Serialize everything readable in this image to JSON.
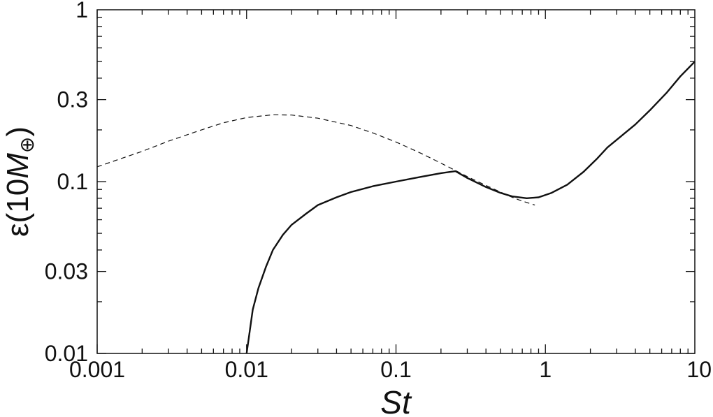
{
  "chart_data": {
    "type": "line",
    "xscale": "log",
    "yscale": "log",
    "xlim": [
      0.001,
      10
    ],
    "ylim": [
      0.01,
      1
    ],
    "xlabel": "St",
    "ylabel": {
      "prefix": "ε(10",
      "italic": "M",
      "subscript": "⊕",
      "suffix": ")"
    },
    "x_ticks": [
      {
        "value": 0.001,
        "label": "0.001"
      },
      {
        "value": 0.01,
        "label": "0.01"
      },
      {
        "value": 0.1,
        "label": "0.1"
      },
      {
        "value": 1,
        "label": "1"
      },
      {
        "value": 10,
        "label": "10"
      }
    ],
    "y_ticks": [
      {
        "value": 0.01,
        "label": "0.01"
      },
      {
        "value": 0.03,
        "label": "0.03"
      },
      {
        "value": 0.1,
        "label": "0.1"
      },
      {
        "value": 0.3,
        "label": "0.3"
      },
      {
        "value": 1,
        "label": "1"
      }
    ],
    "grid": false,
    "series": [
      {
        "style": "solid",
        "color": "#111111",
        "points": [
          [
            0.01,
            0.01
          ],
          [
            0.0105,
            0.0135
          ],
          [
            0.011,
            0.018
          ],
          [
            0.012,
            0.024
          ],
          [
            0.0135,
            0.032
          ],
          [
            0.015,
            0.04
          ],
          [
            0.0175,
            0.049
          ],
          [
            0.02,
            0.056
          ],
          [
            0.025,
            0.065
          ],
          [
            0.03,
            0.073
          ],
          [
            0.04,
            0.081
          ],
          [
            0.05,
            0.087
          ],
          [
            0.07,
            0.094
          ],
          [
            0.1,
            0.1
          ],
          [
            0.15,
            0.107
          ],
          [
            0.2,
            0.112
          ],
          [
            0.25,
            0.115
          ],
          [
            0.3,
            0.105
          ],
          [
            0.4,
            0.093
          ],
          [
            0.5,
            0.086
          ],
          [
            0.6,
            0.082
          ],
          [
            0.75,
            0.08
          ],
          [
            0.9,
            0.081
          ],
          [
            1.1,
            0.086
          ],
          [
            1.4,
            0.096
          ],
          [
            1.8,
            0.114
          ],
          [
            2.2,
            0.135
          ],
          [
            2.6,
            0.158
          ],
          [
            3.0,
            0.175
          ],
          [
            4.0,
            0.215
          ],
          [
            5.0,
            0.26
          ],
          [
            6.5,
            0.33
          ],
          [
            8.0,
            0.41
          ],
          [
            10.0,
            0.5
          ]
        ]
      },
      {
        "style": "dashed",
        "color": "#111111",
        "points": [
          [
            0.001,
            0.122
          ],
          [
            0.002,
            0.15
          ],
          [
            0.003,
            0.172
          ],
          [
            0.005,
            0.2
          ],
          [
            0.007,
            0.22
          ],
          [
            0.01,
            0.236
          ],
          [
            0.015,
            0.245
          ],
          [
            0.02,
            0.244
          ],
          [
            0.03,
            0.234
          ],
          [
            0.05,
            0.212
          ],
          [
            0.07,
            0.192
          ],
          [
            0.1,
            0.17
          ],
          [
            0.15,
            0.145
          ],
          [
            0.2,
            0.128
          ],
          [
            0.25,
            0.116
          ],
          [
            0.3,
            0.107
          ],
          [
            0.4,
            0.095
          ],
          [
            0.5,
            0.087
          ],
          [
            0.6,
            0.081
          ],
          [
            0.7,
            0.077
          ],
          [
            0.85,
            0.073
          ]
        ]
      }
    ]
  }
}
